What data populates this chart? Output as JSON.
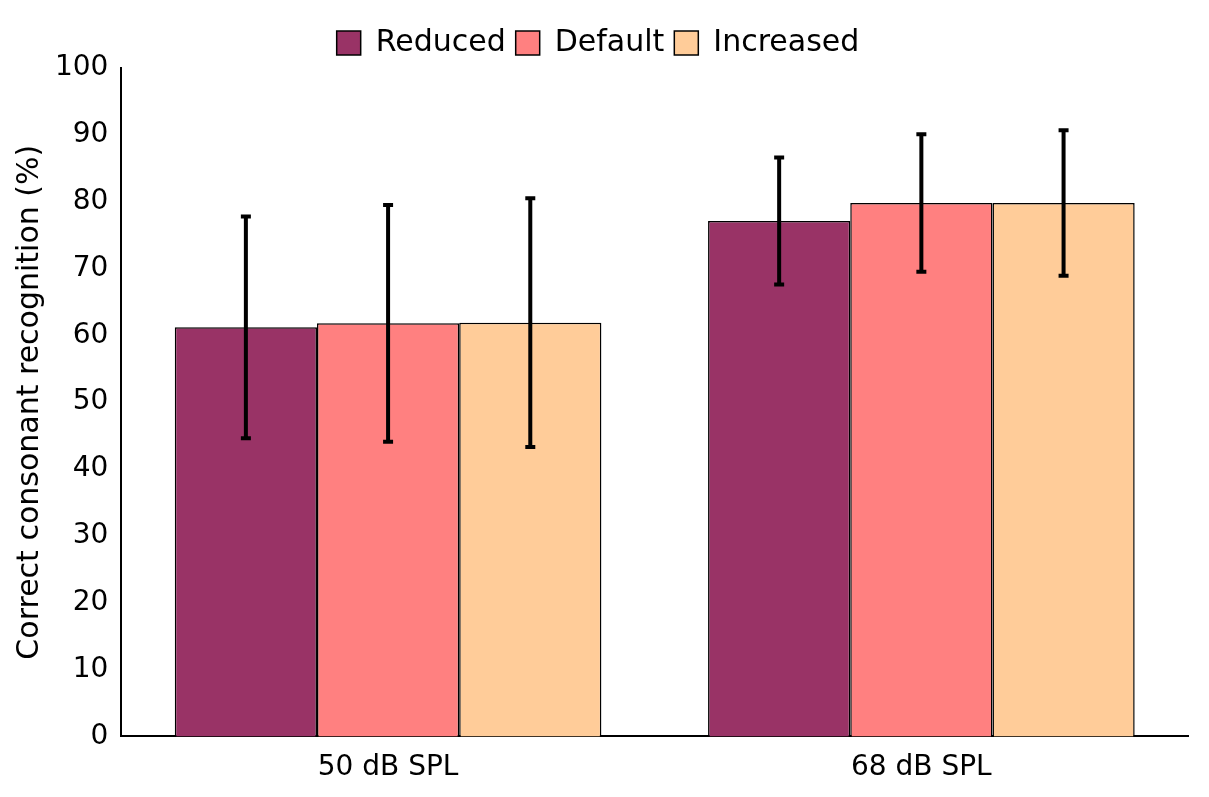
{
  "chart_data": {
    "type": "bar",
    "ylabel": "Correct consonant recognition (%)",
    "categories": [
      "50 dB SPL",
      "68 dB SPL"
    ],
    "series": [
      {
        "name": "Reduced",
        "color": "#993366",
        "values": [
          61.2,
          77.1
        ],
        "errors": [
          16.6,
          9.5
        ]
      },
      {
        "name": "Default",
        "color": "#ff8080",
        "values": [
          61.8,
          79.8
        ],
        "errors": [
          17.7,
          10.3
        ]
      },
      {
        "name": "Increased",
        "color": "#ffcc99",
        "values": [
          61.9,
          79.8
        ],
        "errors": [
          18.6,
          10.9
        ]
      }
    ],
    "ylim": [
      0,
      100
    ],
    "yticks": [
      0,
      10,
      20,
      30,
      40,
      50,
      60,
      70,
      80,
      90,
      100
    ],
    "grid": false,
    "legend": "top"
  }
}
